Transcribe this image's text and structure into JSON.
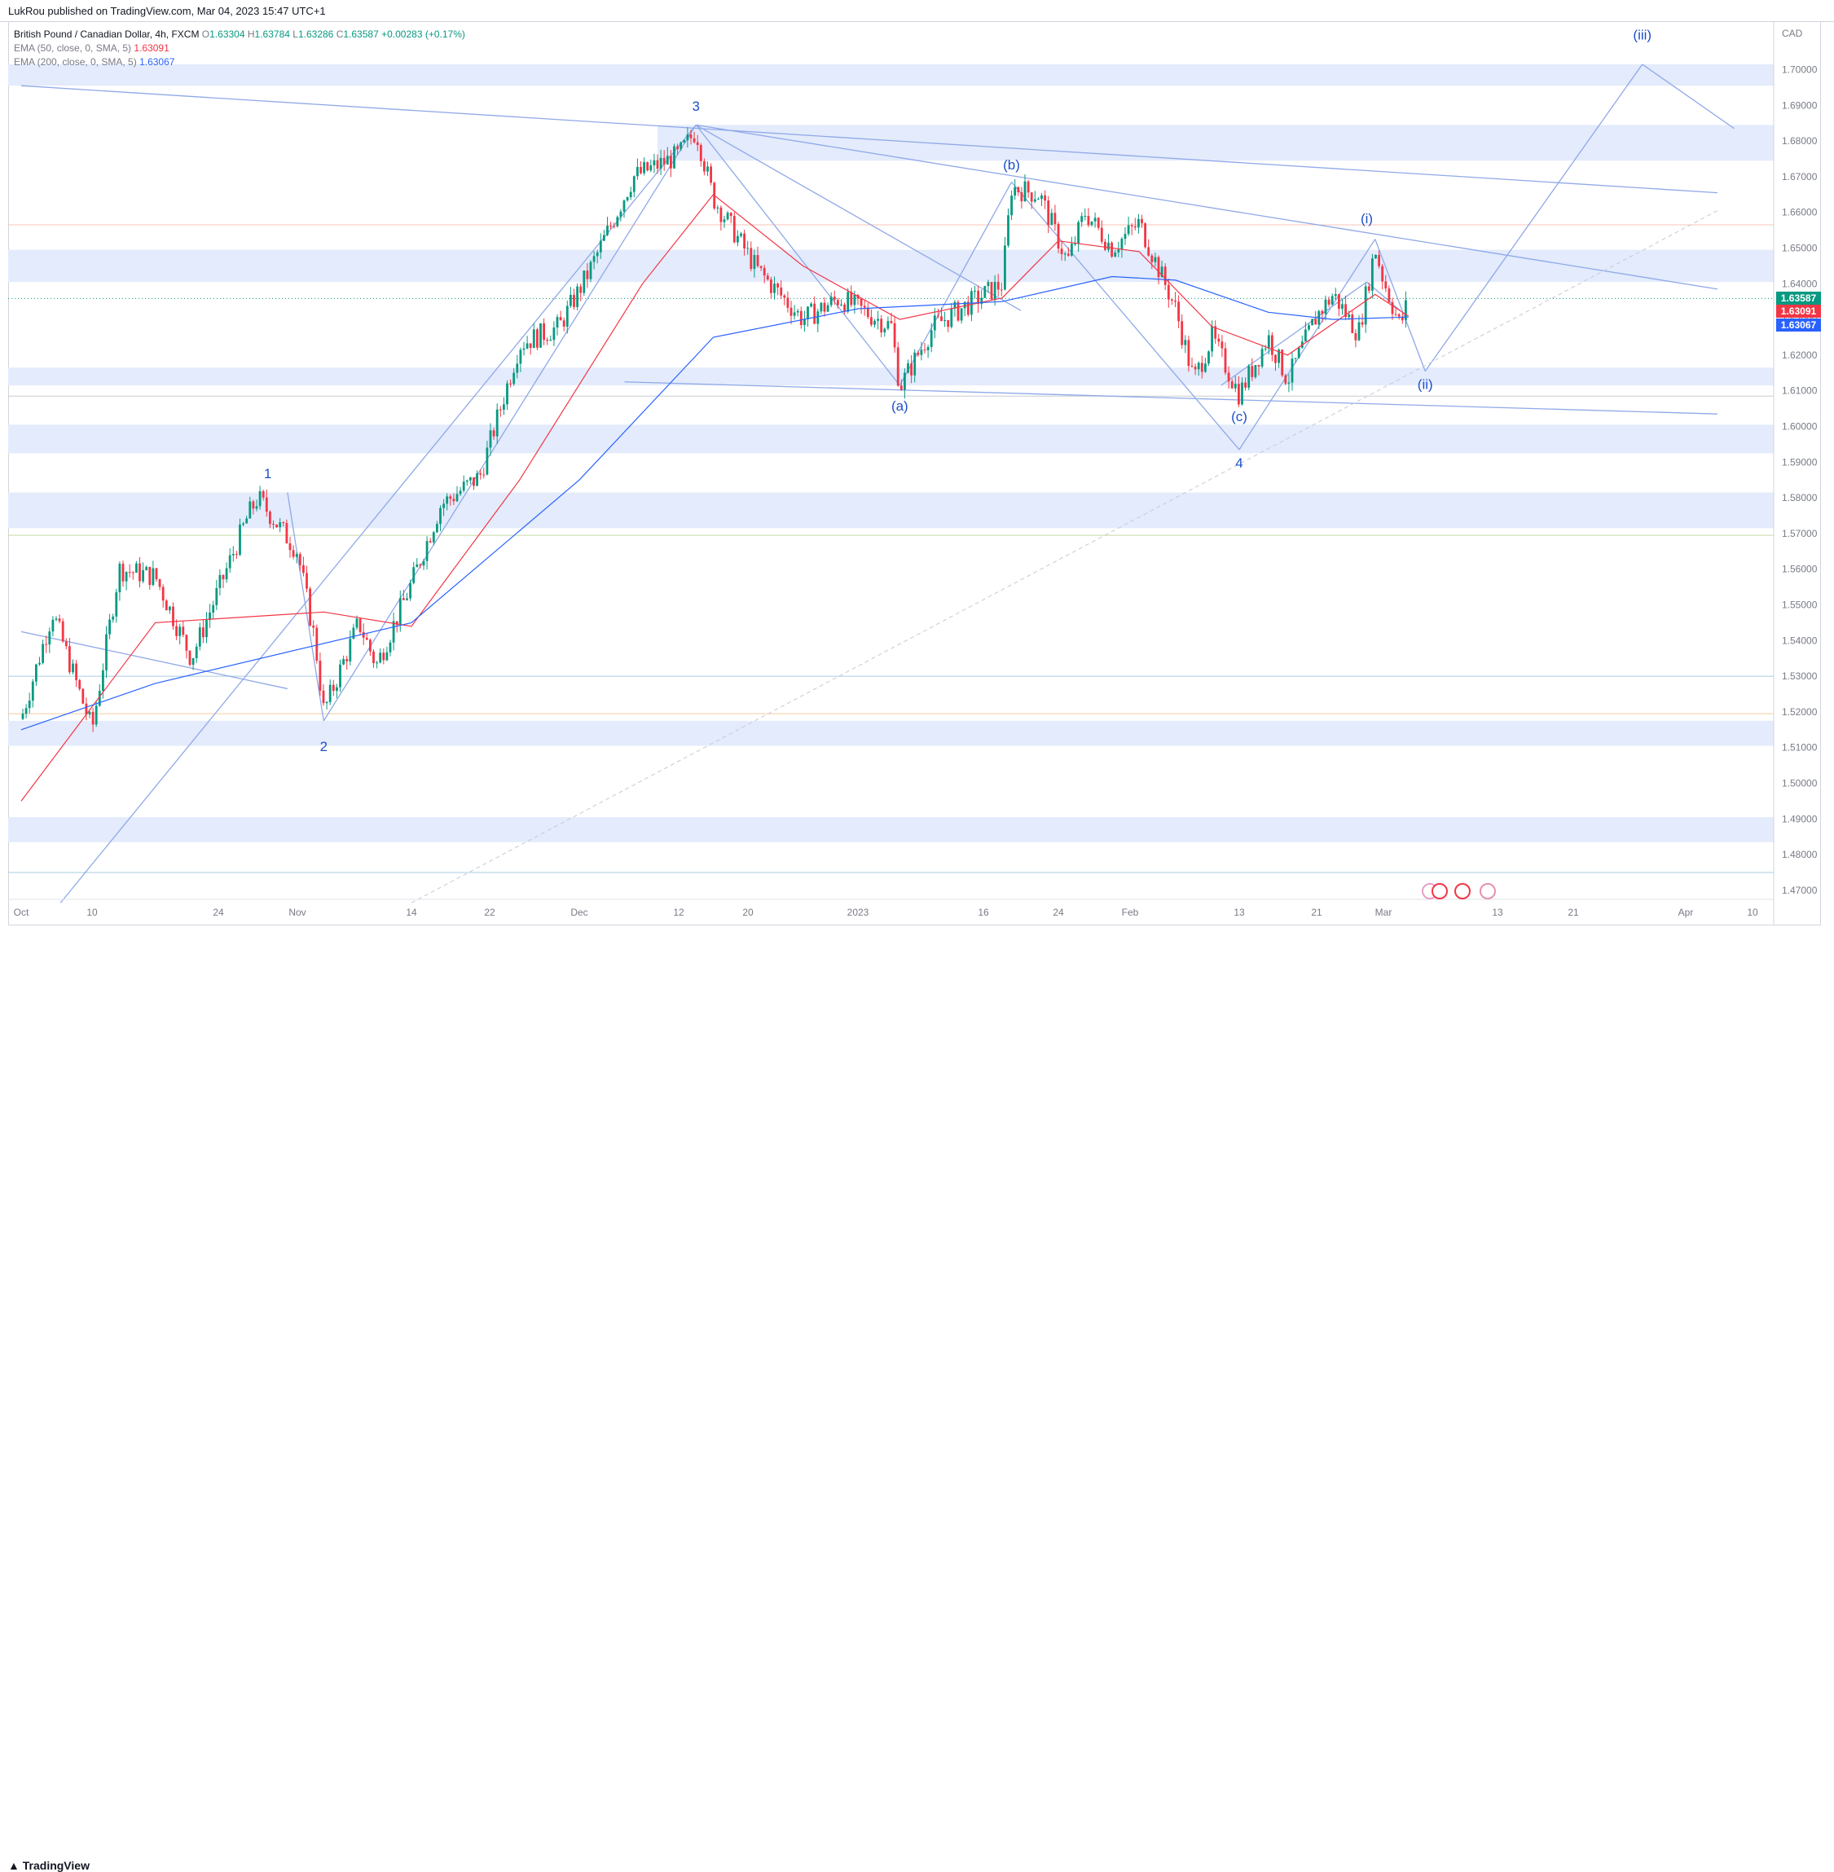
{
  "header": {
    "text": "LukRou published on TradingView.com, Mar 04, 2023 15:47 UTC+1"
  },
  "legend": {
    "symbol": "British Pound / Canadian Dollar, 4h, FXCM",
    "o_label": "O",
    "o": "1.63304",
    "h_label": "H",
    "h": "1.63784",
    "l_label": "L",
    "l": "1.63286",
    "c_label": "C",
    "c": "1.63587",
    "change": "+0.00283 (+0.17%)",
    "ema50_label": "EMA (50, close, 0, SMA, 5)",
    "ema50_value": "1.63091",
    "ema200_label": "EMA (200, close, 0, SMA, 5)",
    "ema200_value": "1.63067"
  },
  "price_tags": {
    "last": "1.63587",
    "ema50": "1.63091",
    "ema200": "1.63067"
  },
  "footer": {
    "brand": "TradingView"
  },
  "chart_data": {
    "type": "line",
    "symbol": "GBPCAD",
    "timeframe": "4h",
    "currency_label": "CAD",
    "ylim": [
      1.465,
      1.703
    ],
    "y_ticks": [
      "1.70000",
      "1.69000",
      "1.68000",
      "1.67000",
      "1.66000",
      "1.65000",
      "1.64000",
      "1.63000",
      "1.62000",
      "1.61000",
      "1.60000",
      "1.59000",
      "1.58000",
      "1.57000",
      "1.56000",
      "1.55000",
      "1.54000",
      "1.53000",
      "1.52000",
      "1.51000",
      "1.50000",
      "1.49000",
      "1.48000",
      "1.47000"
    ],
    "x_ticks": [
      "Oct",
      "10",
      "24",
      "Nov",
      "14",
      "22",
      "Dec",
      "12",
      "20",
      "2023",
      "16",
      "24",
      "Feb",
      "13",
      "21",
      "Mar",
      "13",
      "21",
      "Apr",
      "10"
    ],
    "colors": {
      "up": "#089981",
      "down": "#f23645",
      "ema50": "#f23645",
      "ema200": "#2962ff",
      "wave": "#1e50c8",
      "zone": "#e3ebfc",
      "trend": "#8fa8e8"
    },
    "series": [
      {
        "name": "EMA (50, close, 0, SMA, 5)",
        "last": 1.63091
      },
      {
        "name": "EMA (200, close, 0, SMA, 5)",
        "last": 1.63067
      }
    ],
    "close_path": [
      [
        "Oct",
        1.518
      ],
      [
        "Oct 5",
        1.548
      ],
      [
        "Oct 10",
        1.515
      ],
      [
        "Oct 13",
        1.56
      ],
      [
        "Oct 17",
        1.558
      ],
      [
        "Oct 21",
        1.535
      ],
      [
        "Oct 27",
        1.575
      ],
      [
        "Oct 28",
        1.58
      ],
      [
        "Nov 1",
        1.565
      ],
      [
        "Nov 3",
        1.54
      ],
      [
        "Nov 4",
        1.52
      ],
      [
        "Nov 8",
        1.545
      ],
      [
        "Nov 10",
        1.533
      ],
      [
        "Nov 14",
        1.556
      ],
      [
        "Nov 17",
        1.578
      ],
      [
        "Nov 21",
        1.586
      ],
      [
        "Nov 25",
        1.623
      ],
      [
        "Nov 29",
        1.628
      ],
      [
        "Dec 2",
        1.643
      ],
      [
        "Dec 7",
        1.67
      ],
      [
        "Dec 12",
        1.676
      ],
      [
        "Dec 14",
        1.683
      ],
      [
        "Dec 16",
        1.664
      ],
      [
        "Dec 21",
        1.644
      ],
      [
        "Dec 26",
        1.63
      ],
      [
        "Dec 30",
        1.636
      ],
      [
        "Jan 5",
        1.628
      ],
      [
        "Jan 6",
        1.611
      ],
      [
        "Jan 10",
        1.628
      ],
      [
        "Jan 14",
        1.634
      ],
      [
        "Jan 18",
        1.64
      ],
      [
        "Jan 19",
        1.667
      ],
      [
        "Jan 22",
        1.665
      ],
      [
        "Jan 25",
        1.646
      ],
      [
        "Jan 27",
        1.66
      ],
      [
        "Jan 30",
        1.65
      ],
      [
        "Feb 2",
        1.657
      ],
      [
        "Feb 6",
        1.633
      ],
      [
        "Feb 8",
        1.613
      ],
      [
        "Feb 10",
        1.625
      ],
      [
        "Feb 13",
        1.609
      ],
      [
        "Feb 16",
        1.625
      ],
      [
        "Feb 18",
        1.613
      ],
      [
        "Feb 21",
        1.631
      ],
      [
        "Feb 23",
        1.637
      ],
      [
        "Feb 26",
        1.626
      ],
      [
        "Feb 28",
        1.65
      ],
      [
        "Mar 1",
        1.641
      ],
      [
        "Mar 3",
        1.628
      ],
      [
        "Mar 4",
        1.63587
      ]
    ],
    "ema50_path": [
      [
        "Oct",
        1.495
      ],
      [
        "Oct 17",
        1.545
      ],
      [
        "Nov 4",
        1.548
      ],
      [
        "Nov 14",
        1.544
      ],
      [
        "Nov 25",
        1.585
      ],
      [
        "Dec 8",
        1.64
      ],
      [
        "Dec 16",
        1.665
      ],
      [
        "Dec 26",
        1.645
      ],
      [
        "Jan 6",
        1.63
      ],
      [
        "Jan 18",
        1.636
      ],
      [
        "Jan 24",
        1.652
      ],
      [
        "Feb 2",
        1.649
      ],
      [
        "Feb 10",
        1.628
      ],
      [
        "Feb 18",
        1.62
      ],
      [
        "Feb 28",
        1.637
      ],
      [
        "Mar 4",
        1.63091
      ]
    ],
    "ema200_path": [
      [
        "Oct",
        1.515
      ],
      [
        "Oct 17",
        1.528
      ],
      [
        "Nov 14",
        1.545
      ],
      [
        "Dec 1",
        1.585
      ],
      [
        "Dec 16",
        1.625
      ],
      [
        "Jan 1",
        1.633
      ],
      [
        "Jan 18",
        1.635
      ],
      [
        "Jan 30",
        1.642
      ],
      [
        "Feb 6",
        1.641
      ],
      [
        "Feb 16",
        1.632
      ],
      [
        "Feb 23",
        1.63
      ],
      [
        "Mar 4",
        1.63067
      ]
    ],
    "annotations": [
      "1",
      "2",
      "3",
      "4",
      "(a)",
      "(b)",
      "(c)",
      "(i)",
      "(ii)",
      "(iii)"
    ],
    "grid": false,
    "legend_position": "top-left"
  }
}
